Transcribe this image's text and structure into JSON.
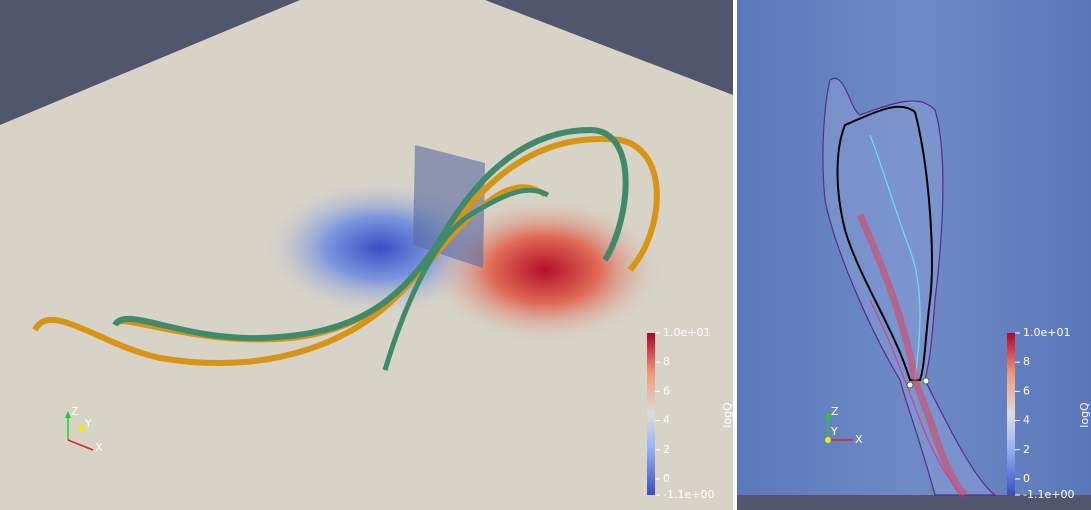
{
  "panels": [
    {
      "colorbar": {
        "title": "logQ",
        "range": [
          -1.1,
          10
        ],
        "ticks": [
          {
            "value": 10,
            "label": "1.0e+01"
          },
          8,
          6,
          4,
          2,
          0,
          {
            "value": -1.1,
            "label": "-1.1e+00"
          }
        ]
      },
      "axes_labels": [
        "Z",
        "Y",
        "X"
      ]
    },
    {
      "colorbar": {
        "title": "logQ",
        "range": [
          -1.1,
          10
        ],
        "ticks": [
          {
            "value": 10,
            "label": "1.0e+01"
          },
          8,
          6,
          4,
          2,
          0,
          {
            "value": -1.1,
            "label": "-1.1e+00"
          }
        ]
      },
      "axes_labels": [
        "Z",
        "Y",
        "X"
      ]
    }
  ]
}
